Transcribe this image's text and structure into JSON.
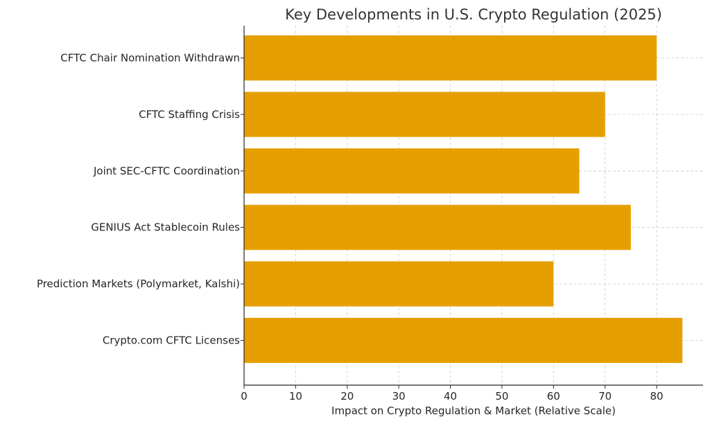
{
  "chart_data": {
    "type": "bar",
    "orientation": "horizontal",
    "title": "Key Developments in U.S. Crypto Regulation (2025)",
    "xlabel": "Impact on Crypto Regulation & Market (Relative Scale)",
    "ylabel": "",
    "categories": [
      "CFTC Chair Nomination Withdrawn",
      "CFTC Staffing Crisis",
      "Joint SEC-CFTC Coordination",
      "GENIUS Act Stablecoin Rules",
      "Prediction Markets (Polymarket, Kalshi)",
      "Crypto.com CFTC Licenses"
    ],
    "values": [
      80,
      70,
      65,
      75,
      60,
      85
    ],
    "xlim": [
      0,
      89
    ],
    "xticks": [
      0,
      10,
      20,
      30,
      40,
      50,
      60,
      70,
      80
    ],
    "grid": true,
    "bar_color": "#e69f00"
  }
}
